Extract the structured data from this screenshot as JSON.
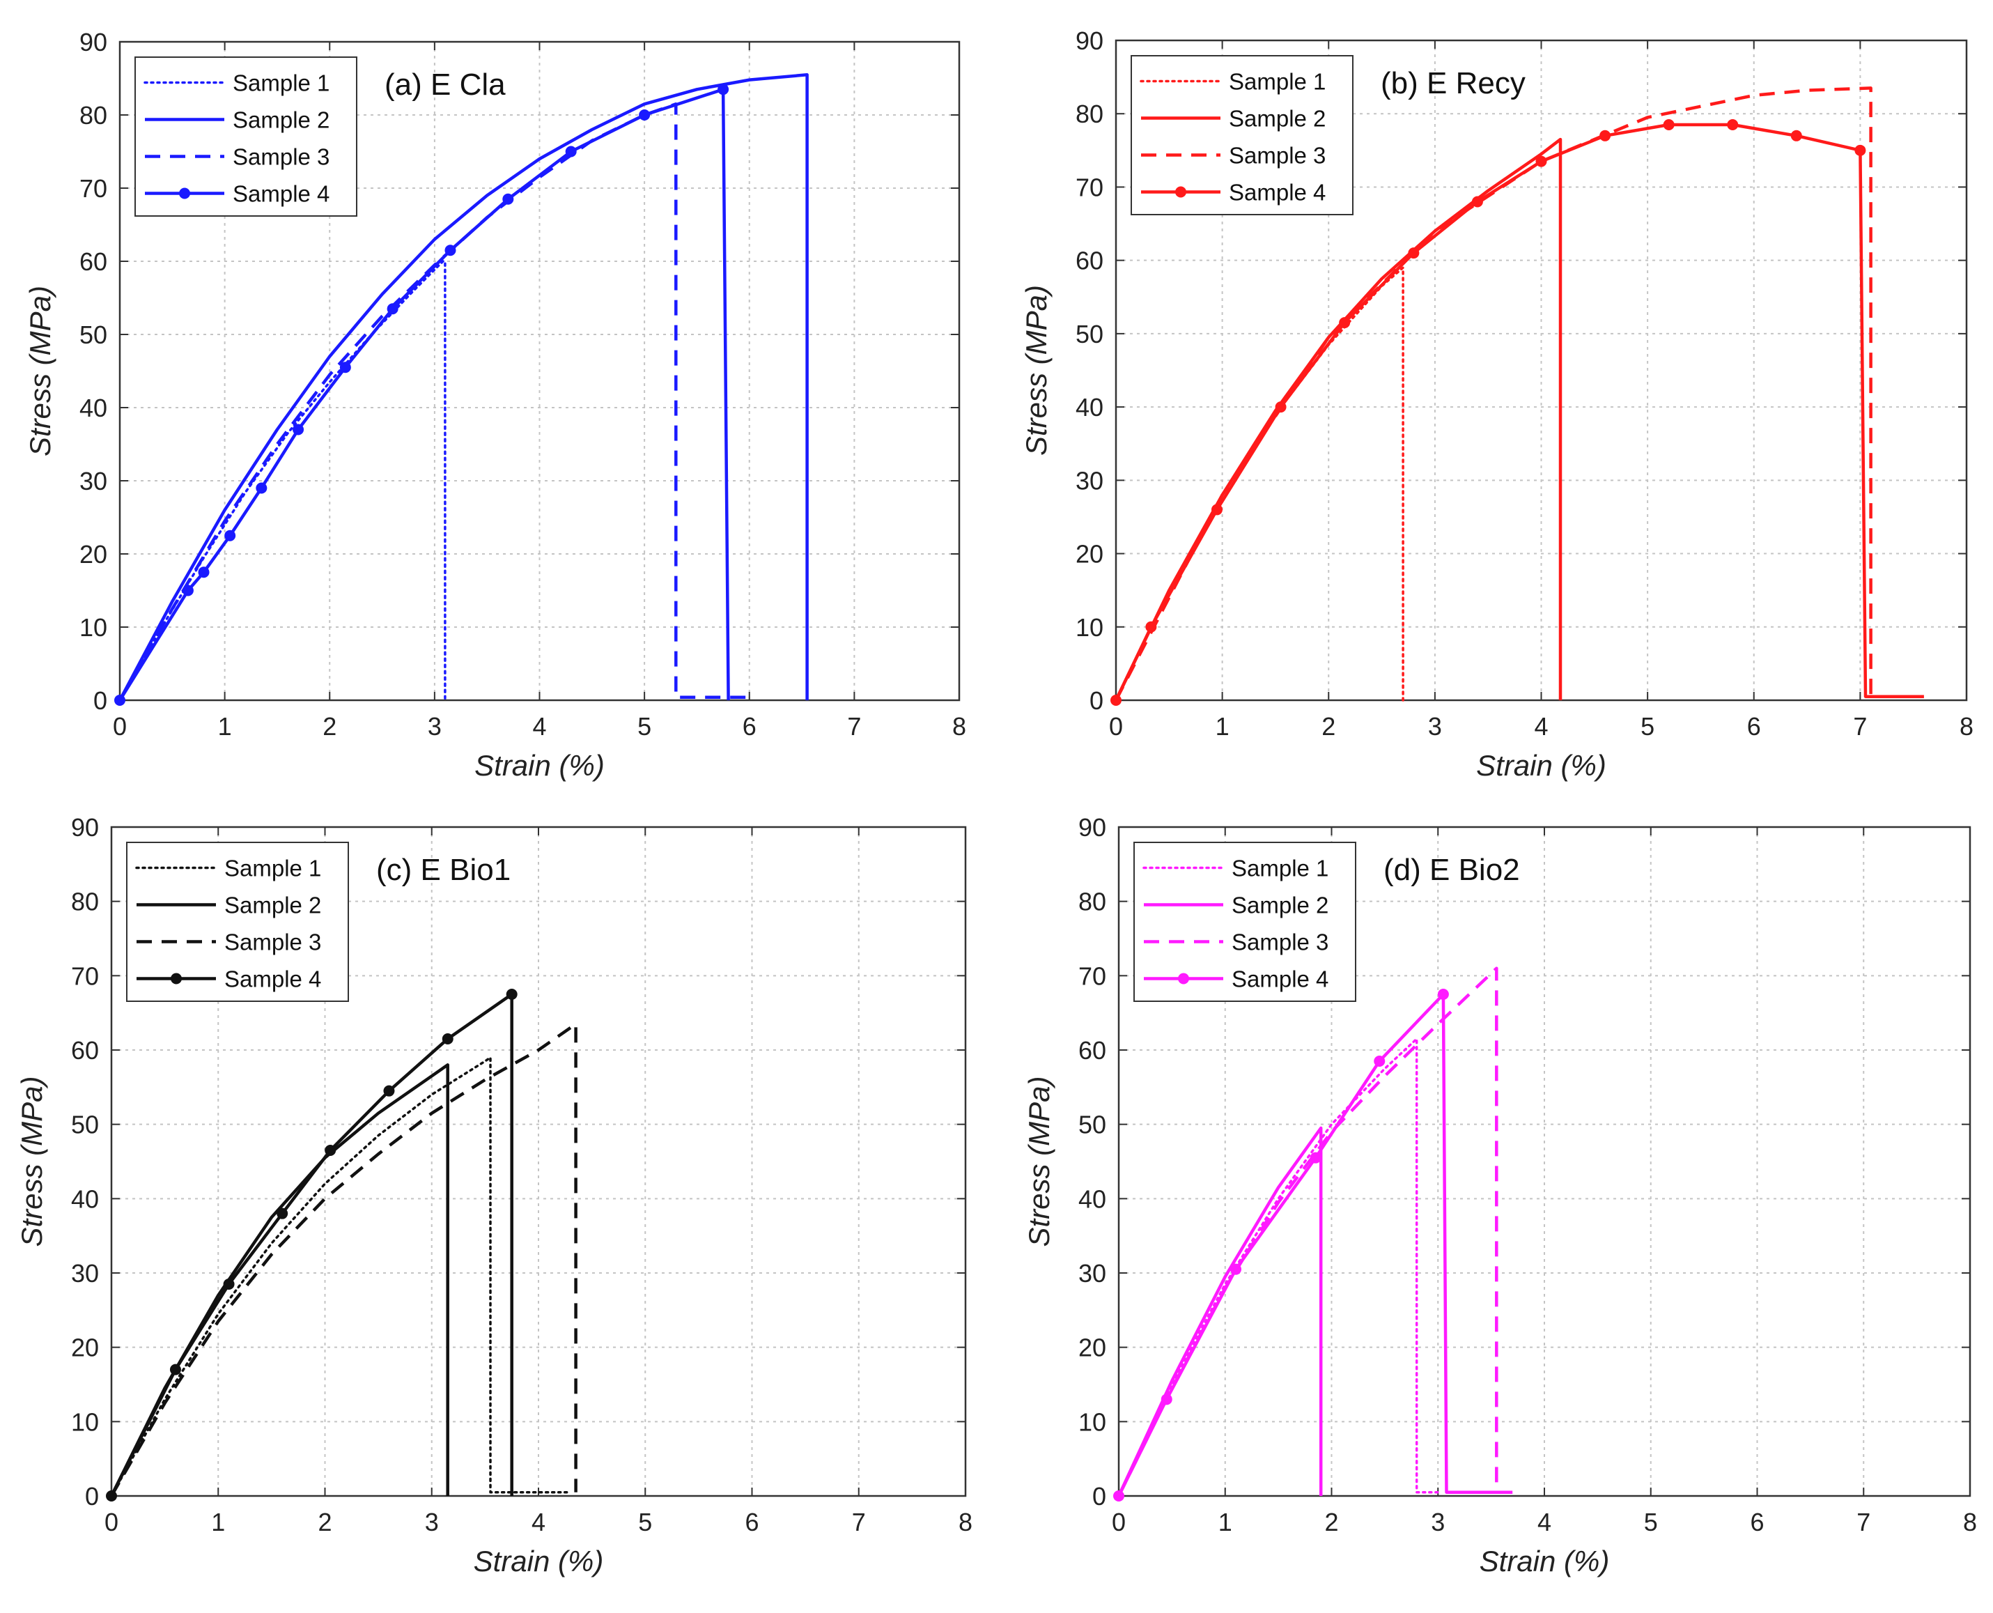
{
  "chart_data": [
    {
      "type": "line",
      "title": "(a) E Cla",
      "xlabel": "Strain (%)",
      "ylabel": "Stress (MPa)",
      "xlim": [
        0,
        8
      ],
      "ylim": [
        0,
        90
      ],
      "xticks": [
        "0",
        "1",
        "2",
        "3",
        "4",
        "5",
        "6",
        "7",
        "8"
      ],
      "yticks": [
        "0",
        "10",
        "20",
        "30",
        "40",
        "50",
        "60",
        "70",
        "80",
        "90"
      ],
      "grid": true,
      "legend_position": "top-left",
      "color": "#1a1aff",
      "series": [
        {
          "name": "Sample 1",
          "style": "dotted",
          "markers": false,
          "x": [
            0,
            0.4,
            0.8,
            1.2,
            1.6,
            2.0,
            2.4,
            2.8,
            3.08,
            3.1,
            3.1
          ],
          "y": [
            0,
            10,
            19.5,
            28.5,
            36.5,
            43.5,
            50,
            56,
            60,
            60,
            0
          ]
        },
        {
          "name": "Sample 2",
          "style": "solid",
          "markers": false,
          "x": [
            0,
            0.5,
            1,
            1.5,
            2,
            2.5,
            3,
            3.5,
            4,
            4.5,
            5,
            5.5,
            6,
            6.55,
            6.55
          ],
          "y": [
            0,
            13.5,
            26,
            37,
            47,
            55.5,
            63,
            69,
            74,
            78,
            81.5,
            83.5,
            84.8,
            85.5,
            0
          ]
        },
        {
          "name": "Sample 3",
          "style": "dashed",
          "markers": false,
          "x": [
            0,
            0.5,
            1,
            1.5,
            2,
            2.5,
            3,
            3.5,
            4,
            4.5,
            5,
            5.3,
            5.3,
            6.0
          ],
          "y": [
            0,
            12.5,
            24.5,
            35,
            44.5,
            52.5,
            59.5,
            66,
            71.5,
            76.5,
            80,
            81.5,
            0.4,
            0.4
          ]
        },
        {
          "name": "Sample 4",
          "style": "solid",
          "markers": true,
          "x": [
            0,
            0.65,
            0.8,
            1.05,
            1.35,
            1.7,
            2.15,
            2.6,
            3.15,
            3.7,
            4.3,
            5.0,
            5.75,
            5.8
          ],
          "y": [
            0,
            15,
            17.5,
            22.5,
            29,
            37,
            45.5,
            53.5,
            61.5,
            68.5,
            75,
            80,
            83.5,
            0
          ]
        }
      ]
    },
    {
      "type": "line",
      "title": "(b) E Recy",
      "xlabel": "Strain (%)",
      "ylabel": "Stress (MPa)",
      "xlim": [
        0,
        8
      ],
      "ylim": [
        0,
        90
      ],
      "xticks": [
        "0",
        "1",
        "2",
        "3",
        "4",
        "5",
        "6",
        "7",
        "8"
      ],
      "yticks": [
        "0",
        "10",
        "20",
        "30",
        "40",
        "50",
        "60",
        "70",
        "80",
        "90"
      ],
      "grid": true,
      "legend_position": "top-left",
      "color": "#ff1a1a",
      "series": [
        {
          "name": "Sample 1",
          "style": "dotted",
          "markers": false,
          "x": [
            0,
            0.5,
            1,
            1.5,
            2,
            2.5,
            2.7,
            2.7
          ],
          "y": [
            0,
            15,
            28,
            39,
            48.5,
            56.5,
            59,
            0
          ]
        },
        {
          "name": "Sample 2",
          "style": "solid",
          "markers": false,
          "x": [
            0,
            0.5,
            1,
            1.5,
            2,
            2.5,
            3,
            3.5,
            4,
            4.18,
            4.18
          ],
          "y": [
            0,
            15,
            28,
            39.5,
            49.5,
            57.5,
            64,
            69.5,
            74.5,
            76.5,
            0
          ]
        },
        {
          "name": "Sample 3",
          "style": "dashed",
          "markers": false,
          "x": [
            0,
            1,
            2,
            3,
            4,
            5,
            6,
            6.5,
            7.1,
            7.1
          ],
          "y": [
            0,
            28,
            49.5,
            64,
            73.5,
            79.5,
            82.5,
            83.2,
            83.5,
            0
          ]
        },
        {
          "name": "Sample 4",
          "style": "solid",
          "markers": true,
          "x": [
            0,
            0.33,
            0.95,
            1.55,
            2.15,
            2.8,
            3.4,
            4.0,
            4.6,
            5.2,
            5.8,
            6.4,
            7.0,
            7.05,
            7.6
          ],
          "y": [
            0,
            10,
            26,
            40,
            51.5,
            61,
            68,
            73.5,
            77,
            78.5,
            78.5,
            77,
            75,
            0.5,
            0.5
          ]
        }
      ]
    },
    {
      "type": "line",
      "title": "(c) E Bio1",
      "xlabel": "Strain (%)",
      "ylabel": "Stress (MPa)",
      "xlim": [
        0,
        8
      ],
      "ylim": [
        0,
        90
      ],
      "xticks": [
        "0",
        "1",
        "2",
        "3",
        "4",
        "5",
        "6",
        "7",
        "8"
      ],
      "yticks": [
        "0",
        "10",
        "20",
        "30",
        "40",
        "50",
        "60",
        "70",
        "80",
        "90"
      ],
      "grid": true,
      "legend_position": "top-left",
      "color": "#111111",
      "series": [
        {
          "name": "Sample 1",
          "style": "dotted",
          "markers": false,
          "x": [
            0,
            0.5,
            1,
            1.5,
            2,
            2.5,
            3,
            3.5,
            3.55,
            3.55,
            4.3
          ],
          "y": [
            0,
            13,
            24.5,
            34,
            42,
            48.5,
            54,
            58.5,
            59,
            0.5,
            0.5
          ]
        },
        {
          "name": "Sample 2",
          "style": "solid",
          "markers": false,
          "x": [
            0,
            0.5,
            1,
            1.5,
            2,
            2.5,
            3,
            3.15,
            3.15
          ],
          "y": [
            0,
            14.5,
            27,
            37.5,
            45.5,
            51.5,
            56.5,
            58,
            0
          ]
        },
        {
          "name": "Sample 3",
          "style": "dashed",
          "markers": false,
          "x": [
            0,
            0.5,
            1,
            1.5,
            2,
            2.5,
            3,
            3.5,
            4,
            4.35,
            4.35
          ],
          "y": [
            0,
            12.5,
            23.5,
            32.5,
            40,
            46,
            51.5,
            56,
            60,
            63.5,
            0.5
          ]
        },
        {
          "name": "Sample 4",
          "style": "solid",
          "markers": true,
          "x": [
            0,
            0.6,
            1.1,
            1.6,
            2.05,
            2.6,
            3.15,
            3.75,
            3.75
          ],
          "y": [
            0,
            17,
            28.5,
            38,
            46.5,
            54.5,
            61.5,
            67.5,
            0
          ]
        }
      ]
    },
    {
      "type": "line",
      "title": "(d) E Bio2",
      "xlabel": "Strain (%)",
      "ylabel": "Stress (MPa)",
      "xlim": [
        0,
        8
      ],
      "ylim": [
        0,
        90
      ],
      "xticks": [
        "0",
        "1",
        "2",
        "3",
        "4",
        "5",
        "6",
        "7",
        "8"
      ],
      "yticks": [
        "0",
        "10",
        "20",
        "30",
        "40",
        "50",
        "60",
        "70",
        "80",
        "90"
      ],
      "grid": true,
      "legend_position": "top-left",
      "color": "#ff1aff",
      "series": [
        {
          "name": "Sample 1",
          "style": "dotted",
          "markers": false,
          "x": [
            0,
            0.5,
            1,
            1.5,
            2,
            2.5,
            2.8,
            2.8,
            3.0
          ],
          "y": [
            0,
            15,
            28.5,
            40,
            50,
            57.5,
            61.5,
            0.5,
            0.5
          ]
        },
        {
          "name": "Sample 2",
          "style": "solid",
          "markers": false,
          "x": [
            0,
            0.5,
            1,
            1.5,
            1.9,
            1.9
          ],
          "y": [
            0,
            15.5,
            29.5,
            41.5,
            49.5,
            0
          ]
        },
        {
          "name": "Sample 3",
          "style": "dashed",
          "markers": false,
          "x": [
            0,
            0.5,
            1,
            1.5,
            2,
            2.5,
            3,
            3.55,
            3.55,
            3.65
          ],
          "y": [
            0,
            14.5,
            28,
            39.5,
            49,
            56.5,
            63.5,
            71,
            0.5,
            0.5
          ]
        },
        {
          "name": "Sample 4",
          "style": "solid",
          "markers": true,
          "x": [
            0,
            0.45,
            1.1,
            1.85,
            2.45,
            3.05,
            3.08,
            3.7
          ],
          "y": [
            0,
            13,
            30.5,
            45.5,
            58.5,
            67.5,
            0.5,
            0.5
          ]
        }
      ]
    }
  ]
}
